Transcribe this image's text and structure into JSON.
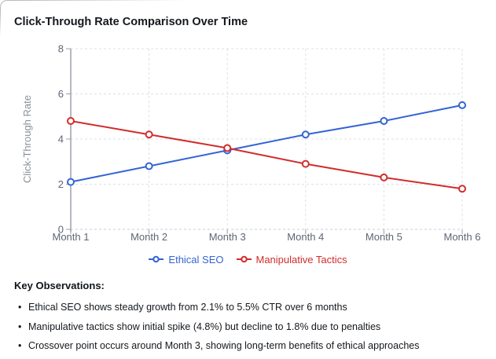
{
  "page": {
    "title": "Click-Through Rate Comparison Over Time"
  },
  "chart_data": {
    "type": "line",
    "title": "Click-Through Rate Comparison Over Time",
    "categories": [
      "Month 1",
      "Month 2",
      "Month 3",
      "Month 4",
      "Month 5",
      "Month 6"
    ],
    "series": [
      {
        "name": "Ethical SEO",
        "color": "#3464d4",
        "values": [
          2.1,
          2.8,
          3.5,
          4.2,
          4.8,
          5.5
        ]
      },
      {
        "name": "Manipulative Tactics",
        "color": "#d22c2c",
        "values": [
          4.8,
          4.2,
          3.6,
          2.9,
          2.3,
          1.8
        ]
      }
    ],
    "xlabel": "",
    "ylabel": "Click-Through Rate",
    "ylim": [
      0,
      8
    ],
    "yticks": [
      0,
      2,
      4,
      6,
      8
    ],
    "grid": true,
    "grid_style": "dashed",
    "marker": "open-circle",
    "legend_position": "bottom"
  },
  "observations": {
    "heading": "Key Observations:",
    "items": [
      "Ethical SEO shows steady growth from 2.1% to 5.5% CTR over 6 months",
      "Manipulative tactics show initial spike (4.8%) but decline to 1.8% due to penalties",
      "Crossover point occurs around Month 3, showing long-term benefits of ethical approaches"
    ]
  }
}
